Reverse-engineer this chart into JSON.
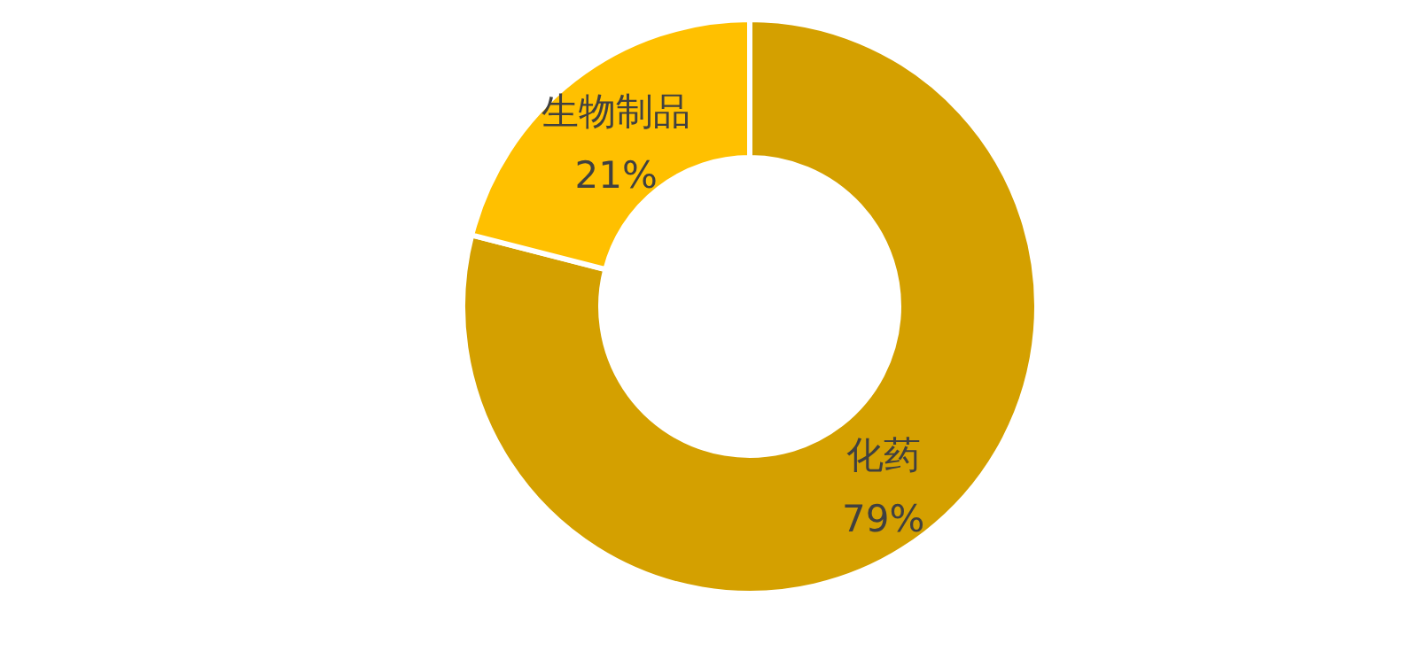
{
  "chart_data": {
    "type": "donut",
    "categories": [
      "化药",
      "生物制品"
    ],
    "values": [
      79,
      21
    ],
    "value_labels": [
      "79%",
      "21%"
    ],
    "colors": [
      "#d4a000",
      "#ffc000"
    ]
  }
}
